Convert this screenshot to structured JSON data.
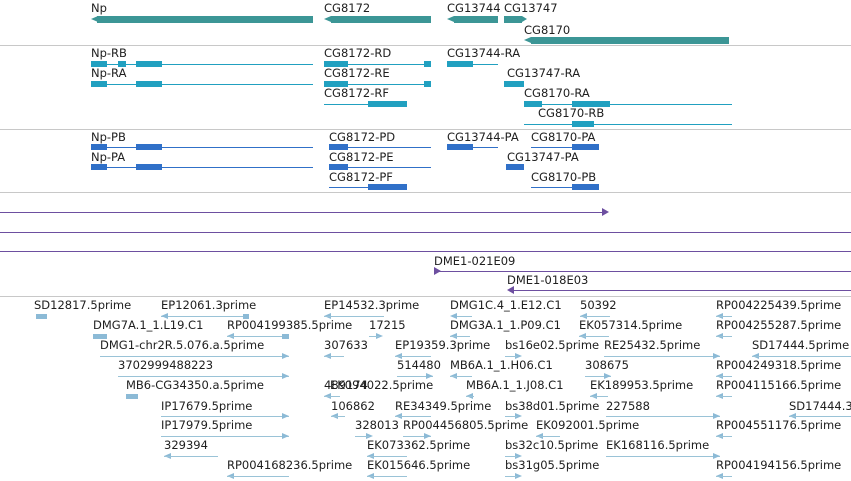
{
  "genes": [
    {
      "label": "Np"
    },
    {
      "label": "CG8172"
    },
    {
      "label": "CG13744"
    },
    {
      "label": "CG13747"
    },
    {
      "label": "CG8170"
    }
  ],
  "transcripts": [
    {
      "label": "Np-RB"
    },
    {
      "label": "Np-RA"
    },
    {
      "label": "CG8172-RD"
    },
    {
      "label": "CG8172-RE"
    },
    {
      "label": "CG8172-RF"
    },
    {
      "label": "CG13744-RA"
    },
    {
      "label": "CG13747-RA"
    },
    {
      "label": "CG8170-RA"
    },
    {
      "label": "CG8170-RB"
    }
  ],
  "proteins": [
    {
      "label": "Np-PB"
    },
    {
      "label": "Np-PA"
    },
    {
      "label": "CG8172-PD"
    },
    {
      "label": "CG8172-PE"
    },
    {
      "label": "CG8172-PF"
    },
    {
      "label": "CG13744-PA"
    },
    {
      "label": "CG8170-PA"
    },
    {
      "label": "CG13747-PA"
    },
    {
      "label": "CG8170-PB"
    }
  ],
  "clones": [
    {
      "label": "DME1-021E09"
    },
    {
      "label": "DME1-018E03"
    }
  ],
  "ests": [
    {
      "label": "SD12817.5prime"
    },
    {
      "label": "EP12061.3prime"
    },
    {
      "label": "EP14532.3prime"
    },
    {
      "label": "DMG1C.4_1.E12.C1"
    },
    {
      "label": "50392"
    },
    {
      "label": "RP004225439.5prime"
    },
    {
      "label": "DMG7A.1_1.L19.C1"
    },
    {
      "label": "RP004199385.5prime"
    },
    {
      "label": "17215"
    },
    {
      "label": "DMG3A.1_1.P09.C1"
    },
    {
      "label": "EK057314.5prime"
    },
    {
      "label": "RP004255287.5prime"
    },
    {
      "label": "DMG1-chr2R.5.076.a.5prime"
    },
    {
      "label": "307633"
    },
    {
      "label": "EP19359.3prime"
    },
    {
      "label": "bs16e02.5prime"
    },
    {
      "label": "RE25432.5prime"
    },
    {
      "label": "SD17444.5prime"
    },
    {
      "label": "3702999488223"
    },
    {
      "label": "514480"
    },
    {
      "label": "MB6A.1_1.H06.C1"
    },
    {
      "label": "308675"
    },
    {
      "label": "RP004249318.5prime"
    },
    {
      "label": "MB6-CG34350.a.5prime"
    },
    {
      "label": "489174"
    },
    {
      "label": "EK094022.5prime"
    },
    {
      "label": "MB6A.1_1.J08.C1"
    },
    {
      "label": "EK189953.5prime"
    },
    {
      "label": "RP004115166.5prime"
    },
    {
      "label": "IP17679.5prime"
    },
    {
      "label": "106862"
    },
    {
      "label": "RE34349.5prime"
    },
    {
      "label": "bs38d01.5prime"
    },
    {
      "label": "227588"
    },
    {
      "label": "SD17444.3"
    },
    {
      "label": "IP17979.5prime"
    },
    {
      "label": "328013"
    },
    {
      "label": "RP004456805.5prime"
    },
    {
      "label": "EK092001.5prime"
    },
    {
      "label": "RP004551176.5prime"
    },
    {
      "label": "329394"
    },
    {
      "label": "EK073362.5prime"
    },
    {
      "label": "bs32c10.5prime"
    },
    {
      "label": "EK168116.5prime"
    },
    {
      "label": "RP004168236.5prime"
    },
    {
      "label": "EK015646.5prime"
    },
    {
      "label": "bs31g05.5prime"
    },
    {
      "label": "RP004194156.5prime"
    }
  ]
}
